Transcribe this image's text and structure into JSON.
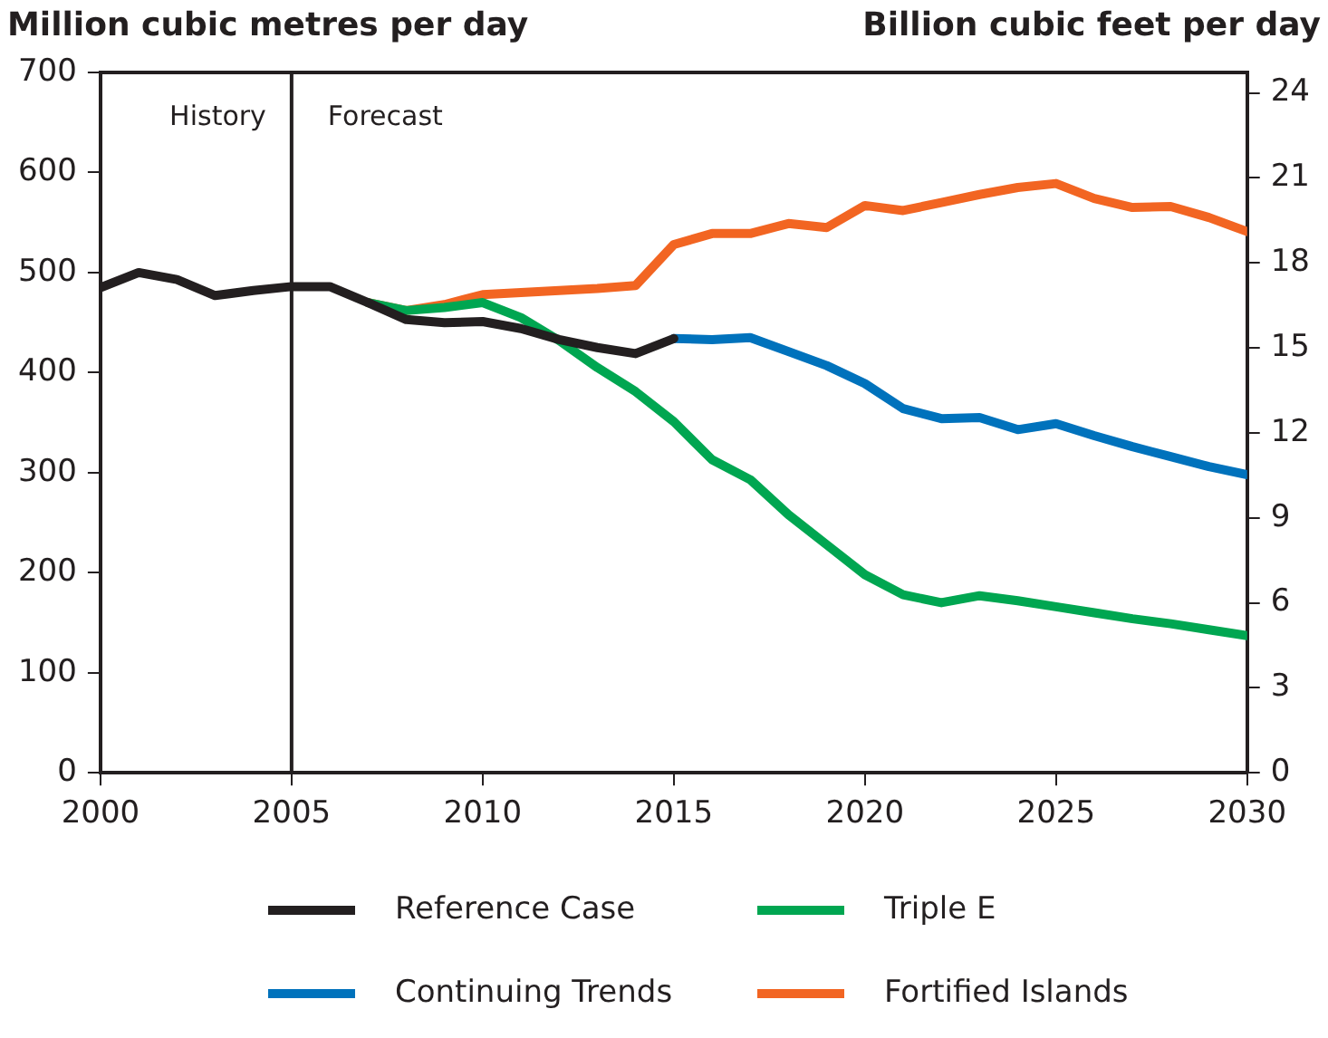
{
  "chart_data": {
    "type": "line",
    "ylabel": "Million cubic metres per day",
    "y2label": "Billion cubic feet per day",
    "xlim": [
      2000,
      2030
    ],
    "xticks": [
      2000,
      2005,
      2010,
      2015,
      2020,
      2025,
      2030
    ],
    "ylim": [
      0,
      700
    ],
    "yticks": [
      0,
      100,
      200,
      300,
      400,
      500,
      600,
      700
    ],
    "y2lim": [
      0,
      24.72
    ],
    "y2ticks": [
      0,
      3,
      6,
      9,
      12,
      15,
      18,
      21,
      24
    ],
    "series": [
      {
        "name": "Reference Case",
        "color": "#231f20",
        "x": [
          2000,
          2001,
          2002,
          2003,
          2004,
          2005,
          2006,
          2007,
          2008,
          2009,
          2010,
          2011,
          2012,
          2013,
          2014,
          2015
        ],
        "values": [
          485,
          500,
          493,
          477,
          482,
          486,
          486,
          470,
          453,
          450,
          451,
          444,
          433,
          425,
          419,
          434
        ]
      },
      {
        "name": "Triple E",
        "color": "#00a651",
        "x": [
          2007,
          2008,
          2009,
          2010,
          2011,
          2012,
          2013,
          2014,
          2015,
          2016,
          2017,
          2018,
          2019,
          2020,
          2021,
          2022,
          2023,
          2024,
          2025,
          2026,
          2027,
          2028,
          2029,
          2030
        ],
        "values": [
          470,
          462,
          465,
          470,
          455,
          432,
          405,
          381,
          351,
          313,
          293,
          258,
          228,
          198,
          178,
          170,
          177,
          172,
          166,
          160,
          154,
          149,
          143,
          137
        ]
      },
      {
        "name": "Continuing Trends",
        "color": "#0072bc",
        "x": [
          2015,
          2016,
          2017,
          2018,
          2019,
          2020,
          2021,
          2022,
          2023,
          2024,
          2025,
          2026,
          2027,
          2028,
          2029,
          2030
        ],
        "values": [
          434,
          433,
          435,
          421,
          407,
          389,
          364,
          354,
          355,
          343,
          349,
          337,
          326,
          316,
          306,
          298
        ]
      },
      {
        "name": "Fortified Islands",
        "color": "#f26522",
        "x": [
          2007,
          2008,
          2009,
          2010,
          2011,
          2012,
          2013,
          2014,
          2015,
          2016,
          2017,
          2018,
          2019,
          2020,
          2021,
          2022,
          2023,
          2024,
          2025,
          2026,
          2027,
          2028,
          2029,
          2030
        ],
        "values": [
          470,
          462,
          468,
          478,
          480,
          482,
          484,
          487,
          528,
          539,
          539,
          549,
          545,
          567,
          562,
          570,
          578,
          585,
          589,
          574,
          565,
          566,
          555,
          541
        ]
      }
    ],
    "ref_lines": [
      {
        "axis": "x",
        "value": 2005,
        "color": "#231f20"
      }
    ],
    "annotations": [
      "History",
      "Forecast"
    ],
    "grid": false,
    "legend": "bottom",
    "marker": "none",
    "line_style": "solid"
  }
}
